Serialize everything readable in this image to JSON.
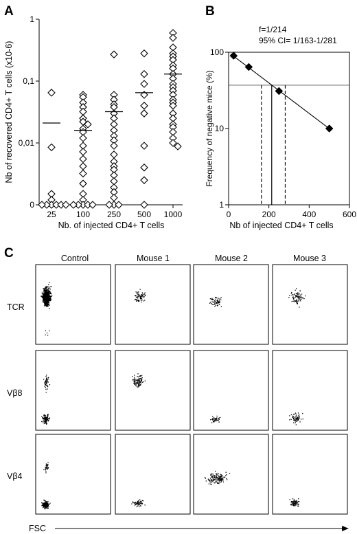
{
  "panels": {
    "A": "A",
    "B": "B",
    "C": "C"
  },
  "chart_data": [
    {
      "type": "scatter",
      "panel": "A",
      "title": "",
      "xlabel": "Nb. of injected CD4+ T cells",
      "ylabel": "Nb of recovered CD4+ T cells (x10-6)",
      "scale": "log",
      "categories": [
        "25",
        "100",
        "250",
        "500",
        "1000"
      ],
      "ytick_labels": [
        "1",
        "0,1",
        "0,01",
        "0"
      ],
      "ytick_values": [
        1,
        0.1,
        0.01,
        0.001
      ],
      "marker": "open-diamond",
      "series": [
        {
          "category": "25",
          "values": [
            0.065,
            0.0085,
            0.0015,
            0.0012,
            0.001,
            0.001,
            0.001,
            0.001,
            0.001,
            0.001
          ],
          "mean": 0.021
        },
        {
          "category": "100",
          "values": [
            0.06,
            0.055,
            0.045,
            0.038,
            0.032,
            0.025,
            0.022,
            0.02,
            0.017,
            0.015,
            0.012,
            0.009,
            0.0072,
            0.0055,
            0.0042,
            0.0032,
            0.0022,
            0.0015,
            0.0012,
            0.001,
            0.001,
            0.001,
            0.001,
            0.001
          ],
          "mean": 0.016
        },
        {
          "category": "250",
          "values": [
            0.27,
            0.06,
            0.05,
            0.042,
            0.038,
            0.03,
            0.025,
            0.02,
            0.016,
            0.013,
            0.011,
            0.009,
            0.0065,
            0.005,
            0.0042,
            0.0037,
            0.003,
            0.0024,
            0.0019,
            0.0016,
            0.0013,
            0.001,
            0.001,
            0.001
          ],
          "mean": 0.032
        },
        {
          "category": "500",
          "values": [
            0.28,
            0.13,
            0.09,
            0.06,
            0.04,
            0.03,
            0.009,
            0.004,
            0.0025,
            0.001
          ],
          "mean": 0.065
        },
        {
          "category": "1000",
          "values": [
            0.6,
            0.5,
            0.35,
            0.28,
            0.25,
            0.22,
            0.18,
            0.16,
            0.13,
            0.11,
            0.09,
            0.08,
            0.07,
            0.06,
            0.05,
            0.045,
            0.04,
            0.03,
            0.025,
            0.02,
            0.018,
            0.015,
            0.012,
            0.01,
            0.0088
          ],
          "mean": 0.13
        }
      ]
    },
    {
      "type": "line",
      "panel": "B",
      "xlabel": "Nb of injected CD4+ T cells",
      "ylabel": "Frequency of negative mice (%)",
      "yscale": "log",
      "xlim": [
        0,
        600
      ],
      "ylim": [
        1,
        100
      ],
      "xticks": [
        0,
        200,
        400,
        600
      ],
      "ytick_labels": [
        "100",
        "10",
        "1"
      ],
      "ytick_values": [
        100,
        10,
        1
      ],
      "annotation_f": "f=1/214",
      "annotation_ci": "95% CI= 1/163-1/281",
      "points": {
        "x": [
          25,
          100,
          250,
          500
        ],
        "y": [
          90,
          64,
          31,
          10
        ]
      },
      "fit_line": {
        "x": [
          10,
          510
        ],
        "y": [
          95,
          9.5
        ]
      },
      "threshold_y": 37,
      "estimate_x": 214,
      "ci_x": [
        163,
        281
      ]
    }
  ],
  "panel_c": {
    "column_headers": [
      "Control",
      "Mouse 1",
      "Mouse 2",
      "Mouse 3"
    ],
    "row_labels": [
      "TCR",
      "Vβ8",
      "Vβ4"
    ],
    "x_axis_label": "FSC"
  }
}
